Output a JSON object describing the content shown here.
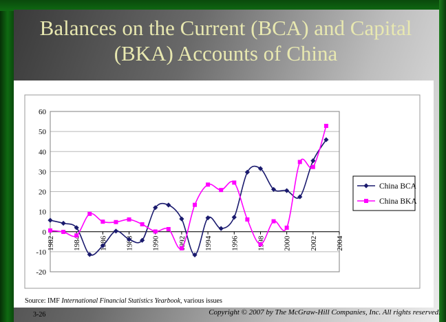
{
  "slide": {
    "title_line1": "Balances on the Current (BCA) and Capital",
    "title_line2": "(BKA) Accounts of China",
    "source_prefix": "Source: IMF ",
    "source_italic": "International Financial Statistics Yearbook",
    "source_suffix": ", various issues",
    "slide_number": "3-26",
    "copyright": "Copyright © 2007 by The McGraw-Hill Companies, Inc.  All rights reserved."
  },
  "colors": {
    "bca": "#1a1a6e",
    "bka": "#ff00ff",
    "title": "#e8e8b0"
  },
  "chart_data": {
    "type": "line",
    "title": "",
    "xlabel": "",
    "ylabel": "",
    "x": [
      1982,
      1983,
      1984,
      1985,
      1986,
      1987,
      1988,
      1989,
      1990,
      1991,
      1992,
      1993,
      1994,
      1995,
      1996,
      1997,
      1998,
      1999,
      2000,
      2001,
      2002,
      2003
    ],
    "xticks": [
      "1982",
      "1984",
      "1986",
      "1988",
      "1990",
      "1992",
      "1994",
      "1996",
      "1998",
      "2000",
      "2002",
      "2004"
    ],
    "xlim": [
      1982,
      2004
    ],
    "ylim": [
      -20,
      60
    ],
    "yticks": [
      "-20",
      "-10",
      "0",
      "10",
      "20",
      "30",
      "40",
      "50",
      "60"
    ],
    "grid": true,
    "legend": "right",
    "series": [
      {
        "name": "China BCA",
        "marker": "diamond",
        "values": [
          5.7,
          4.2,
          2.0,
          -11.4,
          -7.0,
          0.3,
          -3.8,
          -4.3,
          12.0,
          13.3,
          6.4,
          -11.6,
          6.9,
          1.6,
          7.2,
          29.7,
          31.5,
          21.1,
          20.5,
          17.4,
          35.4,
          45.9
        ]
      },
      {
        "name": "China BKA",
        "marker": "square",
        "values": [
          0.6,
          -0.1,
          -1.9,
          8.9,
          5.0,
          4.8,
          6.1,
          3.7,
          0.1,
          1.3,
          -8.3,
          13.4,
          23.5,
          20.8,
          24.5,
          6.1,
          -6.3,
          5.2,
          2.0,
          34.8,
          32.3,
          52.8
        ]
      }
    ]
  }
}
